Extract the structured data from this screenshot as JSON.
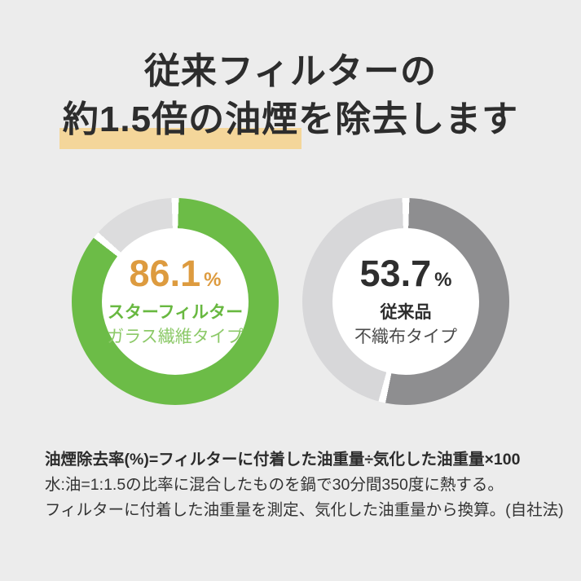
{
  "page": {
    "background": "#ececec"
  },
  "title": {
    "line1": "従来フィルターの",
    "line2_highlighted": "約1.5倍の油煙",
    "line2_rest": "を除去します",
    "text_color": "#2d2d2d",
    "highlight_color": "#f4d69a"
  },
  "chart_data": [
    {
      "type": "pie",
      "subtype": "donut",
      "value": 86.1,
      "unit": "%",
      "labels": [
        "スターフィルター",
        "ガラス繊維タイプ"
      ],
      "start_angle_deg": 0,
      "direction": "clockwise",
      "colors": {
        "segment": "#6cbc47",
        "remainder": "#dcdcdd",
        "gap": "#ffffff",
        "value_text": "#dd9b3f",
        "label_primary": "#68b840",
        "label_secondary": "#8cc968"
      }
    },
    {
      "type": "pie",
      "subtype": "donut",
      "value": 53.7,
      "unit": "%",
      "labels": [
        "従来品",
        "不織布タイプ"
      ],
      "start_angle_deg": 0,
      "direction": "clockwise",
      "colors": {
        "segment": "#8e8e90",
        "remainder": "#d7d7d9",
        "gap": "#ffffff",
        "value_text": "#2e2e2e",
        "label_primary": "#2e2e2e",
        "label_secondary": "#4a4a4a"
      }
    }
  ],
  "footnote": {
    "lines": [
      "油煙除去率(%)=フィルターに付着した油重量÷気化した油重量×100",
      "水:油=1:1.5の比率に混合したものを鍋で30分間350度に熱する。",
      "フィルターに付着した油重量を測定、気化した油重量から換算。(自社法)"
    ]
  }
}
